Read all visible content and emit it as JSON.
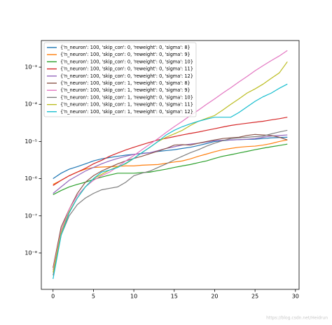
{
  "chart_data": {
    "type": "line",
    "log_y": true,
    "grid": false,
    "legend": "upper left",
    "x": [
      0,
      1,
      2,
      3,
      4,
      5,
      6,
      7,
      8,
      9,
      10,
      11,
      12,
      13,
      14,
      15,
      16,
      17,
      18,
      19,
      20,
      21,
      22,
      23,
      24,
      25,
      26,
      27,
      28,
      29
    ],
    "xlim": [
      -1.45,
      30.45
    ],
    "xticks": [
      0,
      5,
      10,
      15,
      20,
      25,
      30
    ],
    "ylim": [
      1.05e-09,
      0.0052
    ],
    "yticks": [
      {
        "value": 1e-08,
        "label": "10⁻⁸"
      },
      {
        "value": 1e-07,
        "label": "10⁻⁷"
      },
      {
        "value": 1e-06,
        "label": "10⁻⁶"
      },
      {
        "value": 1e-05,
        "label": "10⁻⁵"
      },
      {
        "value": 0.0001,
        "label": "10⁻⁴"
      },
      {
        "value": 0.001,
        "label": "10⁻³"
      }
    ],
    "series": [
      {
        "name": "{'n_neuron': 100, 'skip_con': 0, 'reweight': 0, 'sigma': 8}",
        "color": "#1f77b4",
        "values": [
          1e-06,
          1.4e-06,
          1.8e-06,
          2.1e-06,
          2.5e-06,
          3e-06,
          3.4e-06,
          3.7e-06,
          4e-06,
          4.3e-06,
          4.5e-06,
          4.8e-06,
          5e-06,
          5.4e-06,
          5.7e-06,
          6e-06,
          6.5e-06,
          7e-06,
          7.8e-06,
          8.8e-06,
          1e-05,
          1.05e-05,
          1.1e-05,
          1.12e-05,
          1.14e-05,
          1.15e-05,
          1.2e-05,
          1.25e-05,
          1.28e-05,
          1.3e-05
        ]
      },
      {
        "name": "{'n_neuron': 100, 'skip_con': 0, 'reweight': 0, 'sigma': 9}",
        "color": "#ff7f0e",
        "values": [
          7e-07,
          9e-07,
          1.2e-06,
          1.5e-06,
          1.8e-06,
          2e-06,
          2.05e-06,
          2.1e-06,
          2.15e-06,
          2.2e-06,
          2.2e-06,
          2.3e-06,
          2.35e-06,
          2.4e-06,
          2.6e-06,
          2.8e-06,
          3e-06,
          3.4e-06,
          4e-06,
          4.6e-06,
          5.3e-06,
          6e-06,
          6.5e-06,
          7e-06,
          7.3e-06,
          7.5e-06,
          8e-06,
          8.8e-06,
          1e-05,
          1.1e-05
        ]
      },
      {
        "name": "{'n_neuron': 100, 'skip_con': 0, 'reweight': 0, 'sigma': 10}",
        "color": "#2ca02c",
        "values": [
          3.7e-07,
          4.8e-07,
          6e-07,
          7e-07,
          8e-07,
          9.5e-07,
          1.1e-06,
          1.25e-06,
          1.4e-06,
          1.4e-06,
          1.4e-06,
          1.45e-06,
          1.5e-06,
          1.65e-06,
          1.8e-06,
          2e-06,
          2.2e-06,
          2.4e-06,
          2.7e-06,
          3e-06,
          3.5e-06,
          4e-06,
          4.4e-06,
          4.9e-06,
          5.4e-06,
          6e-06,
          6.6e-06,
          7.2e-06,
          7.8e-06,
          8.5e-06
        ]
      },
      {
        "name": "{'n_neuron': 100, 'skip_con': 0, 'reweight': 0, 'sigma': 11}",
        "color": "#d62728",
        "values": [
          6.5e-07,
          9e-07,
          1.2e-06,
          1.5e-06,
          1.9e-06,
          2.5e-06,
          3.1e-06,
          4e-06,
          4.9e-06,
          5.9e-06,
          7e-06,
          8.2e-06,
          9.5e-06,
          1.1e-05,
          1.22e-05,
          1.35e-05,
          1.5e-05,
          1.65e-05,
          1.8e-05,
          2e-05,
          2.2e-05,
          2.45e-05,
          2.7e-05,
          2.9e-05,
          3.1e-05,
          3.3e-05,
          3.5e-05,
          3.8e-05,
          4.1e-05,
          4.5e-05
        ]
      },
      {
        "name": "{'n_neuron': 100, 'skip_con': 0, 'reweight': 0, 'sigma': 12}",
        "color": "#9467bd",
        "values": [
          4e-07,
          6e-07,
          9e-07,
          1.2e-06,
          1.6e-06,
          2e-06,
          2.5e-06,
          3e-06,
          3.5e-06,
          4e-06,
          4.5e-06,
          4.7e-06,
          5e-06,
          5.7e-06,
          6.5e-06,
          7.2e-06,
          8e-06,
          8.5e-06,
          9e-06,
          9.7e-06,
          1.05e-05,
          1.08e-05,
          1.1e-05,
          1.12e-05,
          1.15e-05,
          1.2e-05,
          1.3e-05,
          1.4e-05,
          1.45e-05,
          1.5e-05
        ]
      },
      {
        "name": "{'n_neuron': 100, 'skip_con': 1, 'reweight': 0, 'sigma': 8}",
        "color": "#8c564b",
        "values": [
          4e-09,
          5e-08,
          1.5e-07,
          4e-07,
          8e-07,
          1.2e-06,
          1.6e-06,
          2e-06,
          2.5e-06,
          3e-06,
          3.5e-06,
          4e-06,
          4.7e-06,
          5.5e-06,
          6.5e-06,
          8e-06,
          8.2e-06,
          8e-06,
          9e-06,
          1e-05,
          1.1e-05,
          1.2e-05,
          1.25e-05,
          1.3e-05,
          1.45e-05,
          1.55e-05,
          1.5e-05,
          1.45e-05,
          1.3e-05,
          1.1e-05
        ]
      },
      {
        "name": "{'n_neuron': 100, 'skip_con': 1, 'reweight': 0, 'sigma': 9}",
        "color": "#e377c2",
        "values": [
          3.5e-09,
          4e-08,
          1.5e-07,
          3.5e-07,
          6e-07,
          9e-07,
          1.2e-06,
          1.5e-06,
          2.1e-06,
          3e-06,
          4.2e-06,
          6e-06,
          8.5e-06,
          1.2e-05,
          1.75e-05,
          2.5e-05,
          3.5e-05,
          5e-05,
          7e-05,
          0.0001,
          0.00014,
          0.0002,
          0.00028,
          0.0004,
          0.00056,
          0.0008,
          0.0011,
          0.0015,
          0.002,
          0.0028
        ]
      },
      {
        "name": "{'n_neuron': 100, 'skip_con': 1, 'reweight': 0, 'sigma': 10}",
        "color": "#7f7f7f",
        "values": [
          2.5e-09,
          3e-08,
          1e-07,
          2e-07,
          3e-07,
          4e-07,
          5e-07,
          5.5e-07,
          6e-07,
          8e-07,
          1.2e-06,
          1.4e-06,
          1.6e-06,
          2e-06,
          2.5e-06,
          3.2e-06,
          4e-06,
          5e-06,
          6e-06,
          7.5e-06,
          9e-06,
          1.05e-05,
          1.2e-05,
          1.25e-05,
          1.3e-05,
          1.35e-05,
          1.4e-05,
          1.6e-05,
          1.8e-05,
          2e-05
        ]
      },
      {
        "name": "{'n_neuron': 100, 'skip_con': 1, 'reweight': 0, 'sigma': 11}",
        "color": "#bcbd22",
        "values": [
          3e-09,
          3.5e-08,
          1.3e-07,
          3e-07,
          6e-07,
          1e-06,
          1.3e-06,
          1.7e-06,
          2.1e-06,
          2.5e-06,
          3.5e-06,
          5e-06,
          7e-06,
          1e-05,
          1.3e-05,
          1.6e-05,
          2e-05,
          2.7e-05,
          3.5e-05,
          4.2e-05,
          5e-05,
          7e-05,
          0.0001,
          0.00014,
          0.0002,
          0.00026,
          0.00035,
          0.0005,
          0.0007,
          0.0014
        ]
      },
      {
        "name": "{'n_neuron': 100, 'skip_con': 1, 'reweight': 0, 'sigma': 12}",
        "color": "#17becf",
        "values": [
          2e-09,
          3e-08,
          1.2e-07,
          3e-07,
          6e-07,
          1e-06,
          1.5e-06,
          1.7e-06,
          2e-06,
          2.6e-06,
          3.5e-06,
          5e-06,
          7e-06,
          1e-05,
          1.5e-05,
          2e-05,
          2.5e-05,
          3e-05,
          3.5e-05,
          4e-05,
          4.5e-05,
          4.5e-05,
          4.5e-05,
          6e-05,
          8.5e-05,
          0.00012,
          0.00016,
          0.0002,
          0.00027,
          0.00035
        ]
      }
    ],
    "watermark": "https://blog.csdn.net/Heidrun"
  }
}
